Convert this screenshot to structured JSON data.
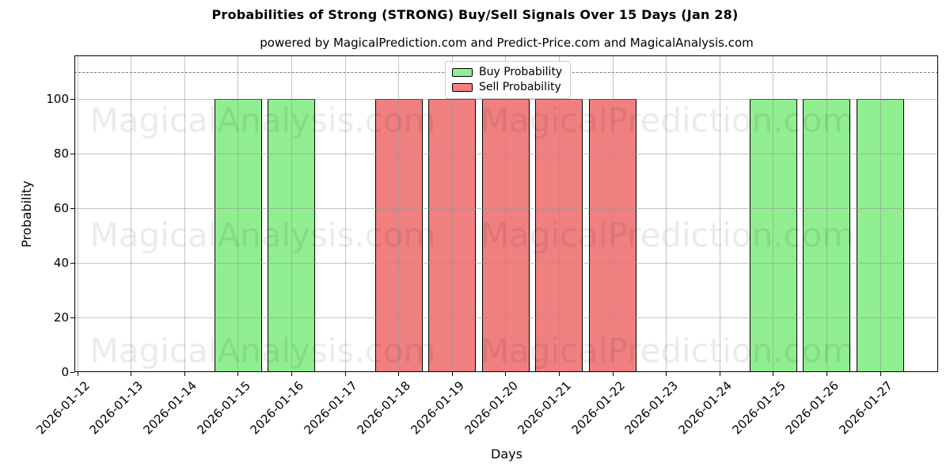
{
  "chart_data": {
    "type": "bar",
    "title": "Probabilities of Strong (STRONG) Buy/Sell Signals Over 15 Days (Jan 28)",
    "subtitle": "powered by MagicalPrediction.com and Predict-Price.com and MagicalAnalysis.com",
    "xlabel": "Days",
    "ylabel": "Probability",
    "categories": [
      "2026-01-12",
      "2026-01-13",
      "2026-01-14",
      "2026-01-15",
      "2026-01-16",
      "2026-01-17",
      "2026-01-18",
      "2026-01-19",
      "2026-01-20",
      "2026-01-21",
      "2026-01-22",
      "2026-01-23",
      "2026-01-24",
      "2026-01-25",
      "2026-01-26",
      "2026-01-27"
    ],
    "series": [
      {
        "name": "Buy Probability",
        "color": "#90EE90",
        "values": [
          0,
          0,
          0,
          100,
          100,
          0,
          0,
          0,
          0,
          0,
          0,
          0,
          0,
          100,
          100,
          100
        ]
      },
      {
        "name": "Sell Probability",
        "color": "#F08080",
        "values": [
          0,
          0,
          0,
          0,
          0,
          0,
          100,
          100,
          100,
          100,
          100,
          0,
          0,
          0,
          0,
          0
        ]
      }
    ],
    "bar_edge_color": "#000000",
    "yticks": [
      0,
      20,
      40,
      60,
      80,
      100
    ],
    "ylim": [
      0,
      116
    ],
    "threshold_line": {
      "y": 110,
      "style": "dashed",
      "color": "#7a7a7a"
    },
    "grid": true,
    "legend_position": "upper center"
  },
  "watermarks": {
    "left_text": "MagicalAnalysis.com",
    "right_text": "MagicalPrediction.com"
  }
}
